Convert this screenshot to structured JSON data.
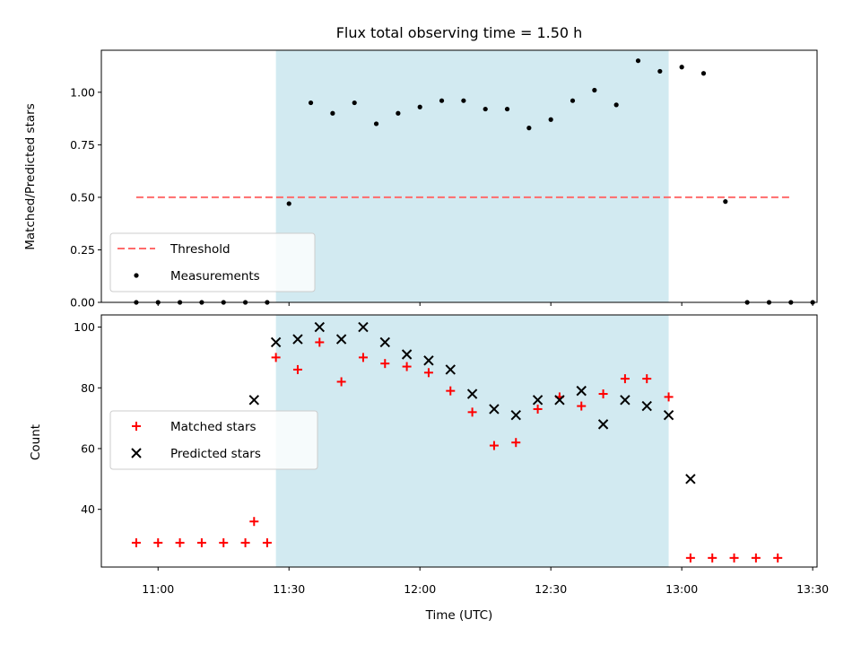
{
  "chart_data": [
    {
      "type": "scatter",
      "title": "Flux total observing time = 1.50 h",
      "xlabel": "",
      "ylabel": "Matched/Predicted stars",
      "xlim": [
        "10:47",
        "13:31"
      ],
      "ylim": [
        0,
        1.2
      ],
      "yticks": [
        "0.00",
        "0.25",
        "0.50",
        "0.75",
        "1.00"
      ],
      "grid": false,
      "legend_position": "lower-left",
      "shaded_span": {
        "start": "11:27",
        "end": "12:57",
        "color": "#add8e6"
      },
      "series": [
        {
          "name": "Threshold",
          "kind": "dashed-line",
          "color": "#ff6b6b",
          "points": [
            [
              "10:55",
              0.5
            ],
            [
              "13:25",
              0.5
            ]
          ]
        },
        {
          "name": "Measurements",
          "kind": "dot",
          "color": "#000000",
          "points": [
            [
              "10:55",
              0.0
            ],
            [
              "11:00",
              0.0
            ],
            [
              "11:05",
              0.0
            ],
            [
              "11:10",
              0.0
            ],
            [
              "11:15",
              0.0
            ],
            [
              "11:20",
              0.0
            ],
            [
              "11:25",
              0.0
            ],
            [
              "11:30",
              0.47
            ],
            [
              "11:35",
              0.95
            ],
            [
              "11:40",
              0.9
            ],
            [
              "11:45",
              0.95
            ],
            [
              "11:50",
              0.85
            ],
            [
              "11:55",
              0.9
            ],
            [
              "12:00",
              0.93
            ],
            [
              "12:05",
              0.96
            ],
            [
              "12:10",
              0.96
            ],
            [
              "12:15",
              0.92
            ],
            [
              "12:20",
              0.92
            ],
            [
              "12:25",
              0.83
            ],
            [
              "12:30",
              0.87
            ],
            [
              "12:35",
              0.96
            ],
            [
              "12:40",
              1.01
            ],
            [
              "12:45",
              0.94
            ],
            [
              "12:50",
              1.15
            ],
            [
              "12:55",
              1.1
            ],
            [
              "13:00",
              1.12
            ],
            [
              "13:05",
              1.09
            ],
            [
              "13:10",
              0.48
            ],
            [
              "13:15",
              0.0
            ],
            [
              "13:20",
              0.0
            ],
            [
              "13:25",
              0.0
            ],
            [
              "13:30",
              0.0
            ]
          ]
        }
      ]
    },
    {
      "type": "scatter",
      "title": "",
      "xlabel": "Time (UTC)",
      "ylabel": "Count",
      "xlim": [
        "10:47",
        "13:31"
      ],
      "xticks": [
        "11:00",
        "11:30",
        "12:00",
        "12:30",
        "13:00",
        "13:30"
      ],
      "ylim": [
        21,
        104
      ],
      "yticks": [
        "40",
        "60",
        "80",
        "100"
      ],
      "grid": false,
      "legend_position": "center-left",
      "shaded_span": {
        "start": "11:27",
        "end": "12:57",
        "color": "#add8e6"
      },
      "series": [
        {
          "name": "Matched stars",
          "kind": "plus",
          "color": "#ff0000",
          "points": [
            [
              "10:55",
              29
            ],
            [
              "11:00",
              29
            ],
            [
              "11:05",
              29
            ],
            [
              "11:10",
              29
            ],
            [
              "11:15",
              29
            ],
            [
              "11:20",
              29
            ],
            [
              "11:25",
              29
            ],
            [
              "11:22",
              36
            ],
            [
              "11:27",
              90
            ],
            [
              "11:32",
              86
            ],
            [
              "11:37",
              95
            ],
            [
              "11:42",
              82
            ],
            [
              "11:47",
              90
            ],
            [
              "11:52",
              88
            ],
            [
              "11:57",
              87
            ],
            [
              "12:02",
              85
            ],
            [
              "12:07",
              79
            ],
            [
              "12:12",
              72
            ],
            [
              "12:17",
              61
            ],
            [
              "12:22",
              62
            ],
            [
              "12:27",
              73
            ],
            [
              "12:32",
              77
            ],
            [
              "12:37",
              74
            ],
            [
              "12:42",
              78
            ],
            [
              "12:47",
              83
            ],
            [
              "12:52",
              83
            ],
            [
              "12:57",
              77
            ],
            [
              "13:02",
              24
            ],
            [
              "13:07",
              24
            ],
            [
              "13:12",
              24
            ],
            [
              "13:17",
              24
            ],
            [
              "13:22",
              24
            ]
          ]
        },
        {
          "name": "Predicted stars",
          "kind": "x",
          "color": "#000000",
          "points": [
            [
              "11:22",
              76
            ],
            [
              "11:27",
              95
            ],
            [
              "11:32",
              96
            ],
            [
              "11:37",
              100
            ],
            [
              "11:42",
              96
            ],
            [
              "11:47",
              100
            ],
            [
              "11:52",
              95
            ],
            [
              "11:57",
              91
            ],
            [
              "12:02",
              89
            ],
            [
              "12:07",
              86
            ],
            [
              "12:12",
              78
            ],
            [
              "12:17",
              73
            ],
            [
              "12:22",
              71
            ],
            [
              "12:27",
              76
            ],
            [
              "12:32",
              76
            ],
            [
              "12:37",
              79
            ],
            [
              "12:42",
              68
            ],
            [
              "12:47",
              76
            ],
            [
              "12:52",
              74
            ],
            [
              "12:57",
              71
            ],
            [
              "13:02",
              50
            ]
          ]
        }
      ]
    }
  ]
}
